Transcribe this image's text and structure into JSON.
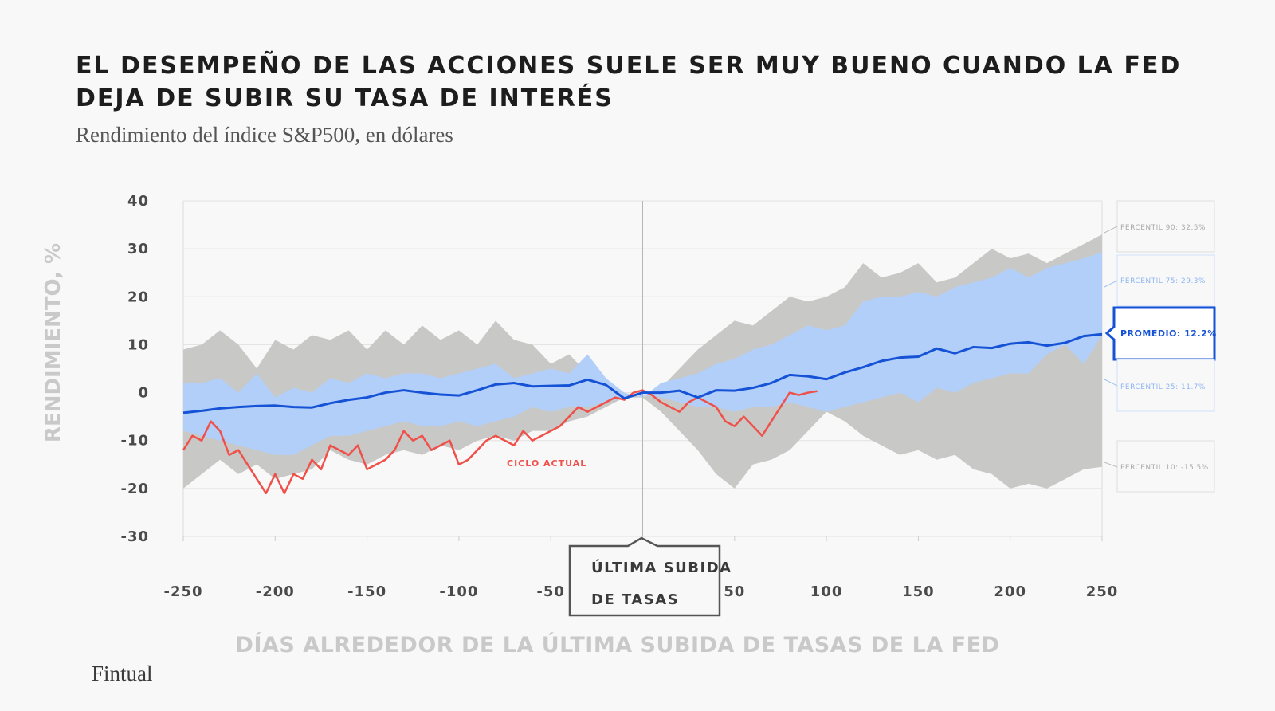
{
  "header": {
    "title": "EL DESEMPEÑO DE LAS ACCIONES SUELE SER MUY BUENO CUANDO LA FED DEJA DE SUBIR SU TASA DE INTERÉS",
    "subtitle": "Rendimiento del índice S&P500, en dólares"
  },
  "footer": {
    "brand": "Fintual"
  },
  "chart_data": {
    "type": "area",
    "xlabel": "DÍAS ALREDEDOR DE LA ÚLTIMA SUBIDA DE TASAS DE LA FED",
    "ylabel": "RENDIMIENTO, %",
    "xlim": [
      -250,
      250
    ],
    "ylim": [
      -30,
      40
    ],
    "xticks": [
      "-250",
      "-200",
      "-150",
      "-100",
      "-50",
      "0",
      "50",
      "100",
      "150",
      "200",
      "250"
    ],
    "yticks": [
      "40",
      "30",
      "20",
      "10",
      "0",
      "-10",
      "-20",
      "-30"
    ],
    "grid": "horizontal",
    "vline_annotation": {
      "x": 0,
      "label_line1": "ÚLTIMA SUBIDA",
      "label_line2": "DE TASAS"
    },
    "colors": {
      "band_outer": "#c8c8c6",
      "band_inner": "#b2cffa",
      "mean": "#1552d6",
      "current": "#f0504a",
      "grid": "#e2e2e2"
    },
    "series": [
      {
        "name": "PERCENTIL 90: 32.5%",
        "x": [
          -250,
          -240,
          -230,
          -220,
          -210,
          -200,
          -190,
          -180,
          -170,
          -160,
          -150,
          -140,
          -130,
          -120,
          -110,
          -100,
          -90,
          -80,
          -70,
          -60,
          -50,
          -40,
          -30,
          -20,
          -10,
          0,
          10,
          20,
          30,
          40,
          50,
          60,
          70,
          80,
          90,
          100,
          110,
          120,
          130,
          140,
          150,
          160,
          170,
          180,
          190,
          200,
          210,
          220,
          230,
          240,
          250
        ],
        "values": [
          9,
          10,
          13,
          10,
          5,
          11,
          9,
          12,
          11,
          13,
          9,
          13,
          10,
          14,
          11,
          13,
          10,
          15,
          11,
          10,
          6,
          8,
          4,
          1,
          0,
          -1,
          1,
          5,
          9,
          12,
          15,
          14,
          17,
          20,
          19,
          20,
          22,
          27,
          24,
          25,
          27,
          23,
          24,
          27,
          30,
          28,
          29,
          27,
          29,
          31,
          33
        ]
      },
      {
        "name": "PERCENTIL 75: 29.3%",
        "x": [
          -250,
          -240,
          -230,
          -220,
          -210,
          -200,
          -190,
          -180,
          -170,
          -160,
          -150,
          -140,
          -130,
          -120,
          -110,
          -100,
          -90,
          -80,
          -70,
          -60,
          -50,
          -40,
          -30,
          -20,
          -10,
          0,
          10,
          20,
          30,
          40,
          50,
          60,
          70,
          80,
          90,
          100,
          110,
          120,
          130,
          140,
          150,
          160,
          170,
          180,
          190,
          200,
          210,
          220,
          230,
          240,
          250
        ],
        "values": [
          2,
          2,
          3,
          0,
          4,
          -1,
          1,
          0,
          3,
          2,
          4,
          3,
          4,
          4,
          3,
          4,
          5,
          6,
          3,
          4,
          5,
          4,
          8,
          3,
          0,
          -1,
          2,
          3,
          4,
          6,
          7,
          9,
          10,
          12,
          14,
          13,
          14,
          19,
          20,
          20,
          21,
          20,
          22,
          23,
          24,
          26,
          24,
          26,
          27,
          28,
          29.3
        ]
      },
      {
        "name": "PROMEDIO: 12.2%",
        "x": [
          -250,
          -240,
          -230,
          -220,
          -210,
          -200,
          -190,
          -180,
          -170,
          -160,
          -150,
          -140,
          -130,
          -120,
          -110,
          -100,
          -90,
          -80,
          -70,
          -60,
          -50,
          -40,
          -30,
          -20,
          -10,
          0,
          10,
          20,
          30,
          40,
          50,
          60,
          70,
          80,
          90,
          100,
          110,
          120,
          130,
          140,
          150,
          160,
          170,
          180,
          190,
          200,
          210,
          220,
          230,
          240,
          250
        ],
        "values": [
          -4.2,
          -3.8,
          -3.3,
          -3,
          -2.8,
          -2.7,
          -3,
          -3.1,
          -2.2,
          -1.5,
          -1,
          0,
          0.5,
          0,
          -0.4,
          -0.6,
          0.5,
          1.7,
          2,
          1.3,
          1.4,
          1.5,
          2.7,
          1.6,
          -1.2,
          0,
          0,
          0.4,
          -1,
          0.5,
          0.4,
          1,
          2,
          3.7,
          3.4,
          2.8,
          4.2,
          5.3,
          6.6,
          7.3,
          7.5,
          9.2,
          8.2,
          9.5,
          9.3,
          10.2,
          10.5,
          9.8,
          10.4,
          11.8,
          12.2
        ]
      },
      {
        "name": "PERCENTIL 25: 11.7%",
        "x": [
          -250,
          -240,
          -230,
          -220,
          -210,
          -200,
          -190,
          -180,
          -170,
          -160,
          -150,
          -140,
          -130,
          -120,
          -110,
          -100,
          -90,
          -80,
          -70,
          -60,
          -50,
          -40,
          -30,
          -20,
          -10,
          0,
          10,
          20,
          30,
          40,
          50,
          60,
          70,
          80,
          90,
          100,
          110,
          120,
          130,
          140,
          150,
          160,
          170,
          180,
          190,
          200,
          210,
          220,
          230,
          240,
          250
        ],
        "values": [
          -8,
          -9,
          -10,
          -11,
          -12,
          -13,
          -13,
          -11,
          -9,
          -9,
          -8,
          -7,
          -6,
          -7,
          -7,
          -6,
          -7,
          -6,
          -5,
          -3,
          -4,
          -3,
          -3,
          -2,
          -1,
          -0.5,
          -1,
          -2,
          -3,
          -3,
          -4,
          -3,
          -3,
          -2,
          -3,
          -4,
          -3,
          -2,
          -1,
          0,
          -2,
          1,
          0,
          2,
          3,
          4,
          4,
          8,
          10,
          6,
          12
        ]
      },
      {
        "name": "PERCENTIL 10: -15.5%",
        "x": [
          -250,
          -240,
          -230,
          -220,
          -210,
          -200,
          -190,
          -180,
          -170,
          -160,
          -150,
          -140,
          -130,
          -120,
          -110,
          -100,
          -90,
          -80,
          -70,
          -60,
          -50,
          -40,
          -30,
          -20,
          -10,
          0,
          10,
          20,
          30,
          40,
          50,
          60,
          70,
          80,
          90,
          100,
          110,
          120,
          130,
          140,
          150,
          160,
          170,
          180,
          190,
          200,
          210,
          220,
          230,
          240,
          250
        ],
        "values": [
          -20,
          -17,
          -14,
          -17,
          -15,
          -18,
          -17,
          -16,
          -12,
          -14,
          -15,
          -13,
          -12,
          -13,
          -11,
          -12,
          -10,
          -9,
          -10,
          -8,
          -8,
          -6,
          -5,
          -3,
          -1,
          -1,
          -4,
          -8,
          -12,
          -17,
          -20,
          -15,
          -14,
          -12,
          -8,
          -4,
          -6,
          -9,
          -11,
          -13,
          -12,
          -14,
          -13,
          -16,
          -17,
          -20,
          -19,
          -20,
          -18,
          -16,
          -15.5
        ]
      },
      {
        "name": "CICLO ACTUAL",
        "x": [
          -250,
          -245,
          -240,
          -235,
          -230,
          -225,
          -220,
          -215,
          -210,
          -205,
          -200,
          -195,
          -190,
          -185,
          -180,
          -175,
          -170,
          -165,
          -160,
          -155,
          -150,
          -145,
          -140,
          -135,
          -130,
          -125,
          -120,
          -115,
          -110,
          -105,
          -100,
          -95,
          -90,
          -85,
          -80,
          -75,
          -70,
          -65,
          -60,
          -55,
          -50,
          -45,
          -40,
          -35,
          -30,
          -25,
          -20,
          -15,
          -10,
          -5,
          0,
          5,
          10,
          15,
          20,
          25,
          30,
          35,
          40,
          45,
          50,
          55,
          60,
          65,
          70,
          75,
          80,
          85,
          90,
          95
        ],
        "values": [
          -12,
          -9,
          -10,
          -6,
          -8,
          -13,
          -12,
          -15,
          -18,
          -21,
          -17,
          -21,
          -17,
          -18,
          -14,
          -16,
          -11,
          -12,
          -13,
          -11,
          -16,
          -15,
          -14,
          -12,
          -8,
          -10,
          -9,
          -12,
          -11,
          -10,
          -15,
          -14,
          -12,
          -10,
          -9,
          -10,
          -11,
          -8,
          -10,
          -9,
          -8,
          -7,
          -5,
          -3,
          -4,
          -3,
          -2,
          -1,
          -1.5,
          0,
          0.5,
          -0.5,
          -2,
          -3,
          -4,
          -2,
          -1,
          -2,
          -3,
          -6,
          -7,
          -5,
          -7,
          -9,
          -6,
          -3,
          0,
          -0.5,
          0,
          0.3
        ]
      }
    ],
    "band_labels": {
      "p90": "PERCENTIL 90: 32.5%",
      "p75": "PERCENTIL 75: 29.3%",
      "mean": "PROMEDIO: 12.2%",
      "p25": "PERCENTIL 25: 11.7%",
      "p10": "PERCENTIL 10: -15.5%",
      "current": "CICLO ACTUAL"
    }
  }
}
